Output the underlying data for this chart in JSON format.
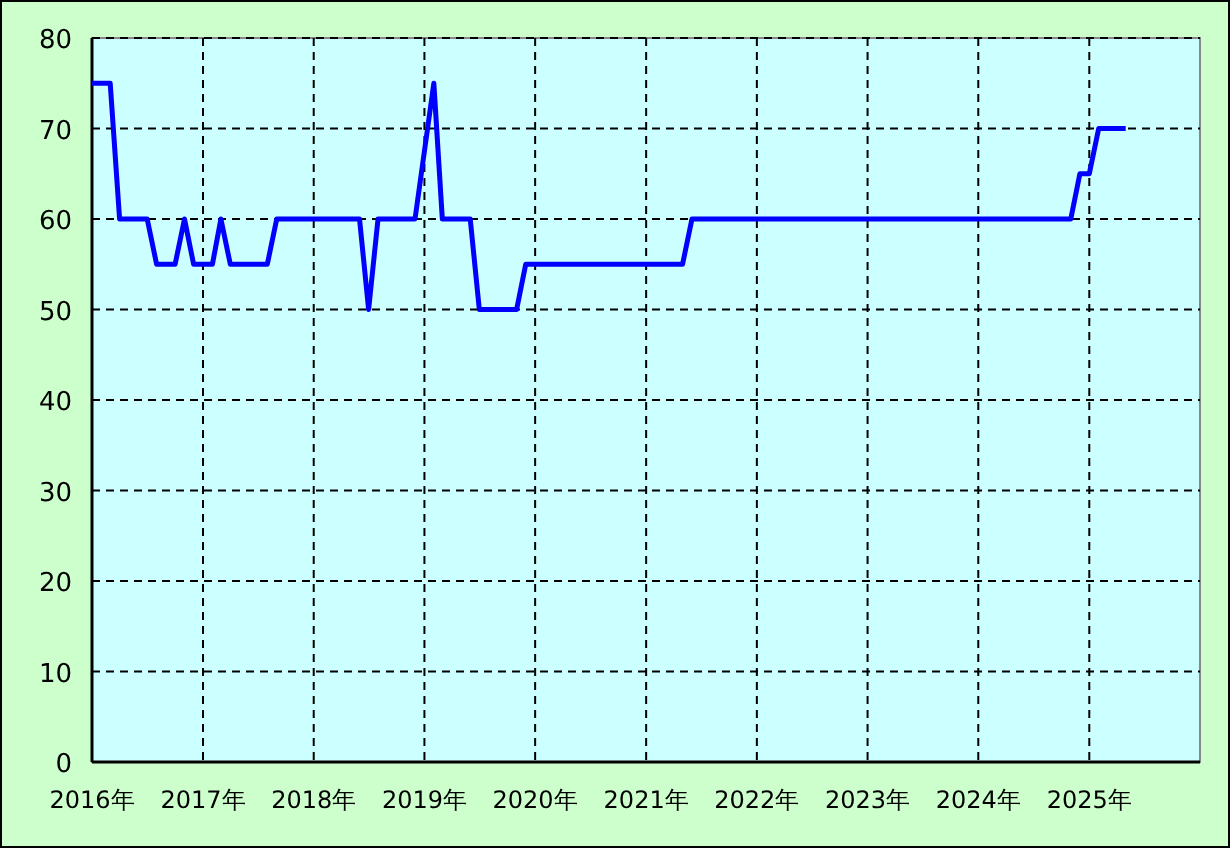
{
  "chart_data": {
    "type": "line",
    "x": [
      "2016-01",
      "2016-03",
      "2016-04",
      "2016-07",
      "2016-08",
      "2016-10",
      "2016-11",
      "2016-12",
      "2017-02",
      "2017-03",
      "2017-04",
      "2017-08",
      "2017-09",
      "2018-06",
      "2018-07",
      "2018-08",
      "2018-12",
      "2019-02",
      "2019-03",
      "2019-06",
      "2019-07",
      "2019-11",
      "2019-12",
      "2021-05",
      "2021-06",
      "2024-11",
      "2024-12",
      "2025-01",
      "2025-02",
      "2025-05"
    ],
    "series": [
      {
        "color": "#0000ff",
        "values": [
          75,
          75,
          60,
          60,
          55,
          55,
          60,
          55,
          55,
          60,
          55,
          55,
          60,
          60,
          50,
          60,
          60,
          75,
          60,
          60,
          50,
          50,
          55,
          55,
          60,
          60,
          65,
          65,
          70,
          70
        ]
      }
    ],
    "xlim": [
      "2016-01",
      "2026-01"
    ],
    "xticks": [
      {
        "value": "2016",
        "label": "2016年"
      },
      {
        "value": "2017",
        "label": "2017年"
      },
      {
        "value": "2018",
        "label": "2018年"
      },
      {
        "value": "2019",
        "label": "2019年"
      },
      {
        "value": "2020",
        "label": "2020年"
      },
      {
        "value": "2021",
        "label": "2021年"
      },
      {
        "value": "2022",
        "label": "2022年"
      },
      {
        "value": "2023",
        "label": "2023年"
      },
      {
        "value": "2024",
        "label": "2024年"
      },
      {
        "value": "2025",
        "label": "2025年"
      }
    ],
    "ylim": [
      0,
      80
    ],
    "yticks": [
      0,
      10,
      20,
      30,
      40,
      50,
      60,
      70,
      80
    ],
    "grid": true,
    "line_style": "solid",
    "marker": "none"
  }
}
